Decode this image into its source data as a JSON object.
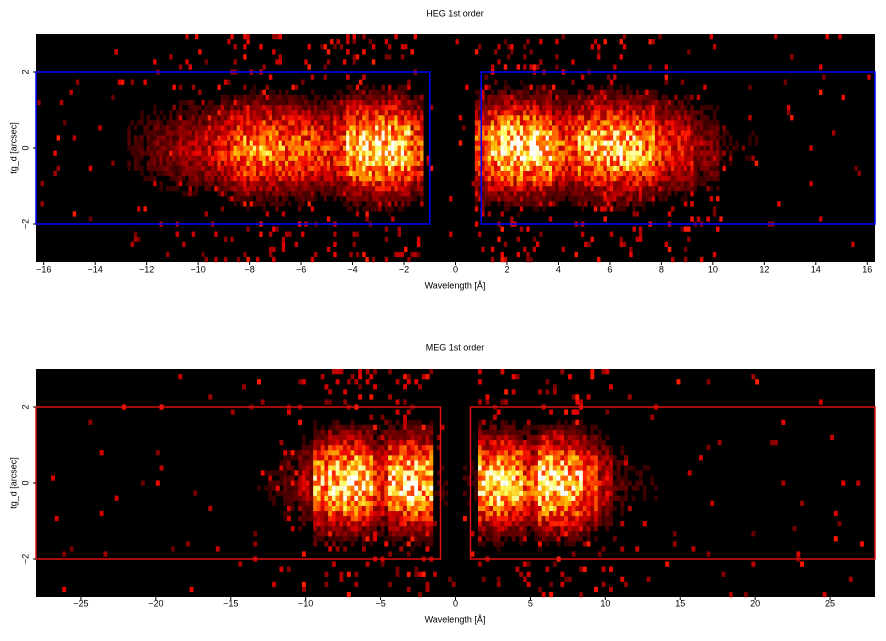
{
  "chart_data": [
    {
      "type": "heatmap",
      "title": "HEG 1st order",
      "xlabel": "Wavelength [Å]",
      "ylabel": "tg_d [arcsec]",
      "xlim": [
        -16.3,
        16.3
      ],
      "ylim": [
        -3,
        3
      ],
      "xticks": [
        {
          "value": -16,
          "label": "−16"
        },
        {
          "value": -14,
          "label": "−14"
        },
        {
          "value": -12,
          "label": "−12"
        },
        {
          "value": -10,
          "label": "−10"
        },
        {
          "value": -8,
          "label": "−8"
        },
        {
          "value": -6,
          "label": "−6"
        },
        {
          "value": -4,
          "label": "−4"
        },
        {
          "value": -2,
          "label": "−2"
        },
        0,
        2,
        4,
        6,
        8,
        10,
        12,
        14,
        16
      ],
      "yticks": [
        {
          "value": -2,
          "label": "−2"
        },
        0,
        2
      ],
      "profile": {
        "x": [
          -16,
          -15.5,
          -15,
          -14.5,
          -14,
          -13.5,
          -13,
          -12.5,
          -12,
          -11.5,
          -11,
          -10.5,
          -10,
          -9.5,
          -9,
          -8.5,
          -8,
          -7.5,
          -7,
          -6.5,
          -6,
          -5.5,
          -5,
          -4.5,
          -4,
          -3.5,
          -3,
          -2.5,
          -2,
          -1.5,
          -1,
          -0.5,
          0,
          0.5,
          1,
          1.5,
          2,
          2.5,
          3,
          3.5,
          4,
          4.5,
          5,
          5.5,
          6,
          6.5,
          7,
          7.5,
          8,
          8.5,
          9,
          9.5,
          10,
          10.5,
          11,
          11.5,
          12,
          12.5,
          13,
          13.5,
          14,
          14.5,
          15,
          15.5,
          16
        ],
        "values": [
          0.02,
          0.02,
          0.02,
          0.02,
          0.02,
          0.03,
          0.05,
          0.12,
          0.15,
          0.2,
          0.22,
          0.28,
          0.32,
          0.35,
          0.45,
          0.6,
          0.7,
          0.72,
          0.68,
          0.65,
          0.6,
          0.55,
          0.5,
          0.55,
          0.9,
          0.95,
          1.0,
          0.98,
          0.9,
          0.6,
          0.03,
          0.02,
          0.02,
          0.02,
          0.6,
          0.85,
          1.0,
          1.0,
          1.0,
          0.95,
          0.6,
          0.55,
          0.8,
          0.85,
          0.9,
          0.9,
          0.85,
          0.75,
          0.5,
          0.45,
          0.4,
          0.25,
          0.22,
          0.1,
          0.08,
          0.08,
          0.06,
          0.04,
          0.03,
          0.03,
          0.03,
          0.02,
          0.02,
          0.02,
          0.02
        ]
      },
      "boxes": [
        {
          "x": [
            -16.3,
            -1
          ],
          "y": [
            -2,
            2
          ]
        },
        {
          "x": [
            1,
            16.3
          ],
          "y": [
            -2,
            2
          ]
        }
      ],
      "box_color": "#0000ff"
    },
    {
      "type": "heatmap",
      "title": "MEG 1st order",
      "xlabel": "Wavelength [Å]",
      "ylabel": "tg_d [arcsec]",
      "xlim": [
        -28,
        28
      ],
      "ylim": [
        -3,
        3
      ],
      "xticks": [
        {
          "value": -25,
          "label": "−25"
        },
        {
          "value": -20,
          "label": "−20"
        },
        {
          "value": -15,
          "label": "−15"
        },
        {
          "value": -10,
          "label": "−10"
        },
        {
          "value": -5,
          "label": "−5"
        },
        0,
        5,
        10,
        15,
        20,
        25
      ],
      "yticks": [
        {
          "value": -2,
          "label": "−2"
        },
        0,
        2
      ],
      "profile": {
        "x": [
          -27,
          -26,
          -25,
          -24,
          -23,
          -22,
          -21,
          -20,
          -19,
          -18,
          -17,
          -16,
          -15,
          -14,
          -13,
          -12,
          -11,
          -10,
          -9,
          -8,
          -7,
          -6,
          -5,
          -4,
          -3,
          -2,
          -1,
          0,
          1,
          2,
          3,
          4,
          5,
          6,
          7,
          8,
          9,
          10,
          11,
          12,
          13,
          14,
          15,
          16,
          17,
          18,
          19,
          20,
          21,
          22,
          23,
          24,
          25,
          26,
          27
        ],
        "values": [
          0.02,
          0.02,
          0.02,
          0.02,
          0.02,
          0.02,
          0.02,
          0.02,
          0.02,
          0.02,
          0.02,
          0.03,
          0.04,
          0.06,
          0.08,
          0.1,
          0.15,
          0.3,
          0.8,
          0.95,
          1.0,
          0.9,
          0.5,
          0.95,
          1.0,
          0.9,
          0.1,
          0.02,
          0.1,
          0.9,
          1.0,
          0.85,
          0.6,
          1.0,
          1.0,
          0.9,
          0.6,
          0.35,
          0.15,
          0.1,
          0.08,
          0.05,
          0.04,
          0.03,
          0.02,
          0.02,
          0.02,
          0.02,
          0.02,
          0.02,
          0.02,
          0.02,
          0.02,
          0.02,
          0.02
        ]
      },
      "boxes": [
        {
          "x": [
            -28,
            -1
          ],
          "y": [
            -2,
            2
          ]
        },
        {
          "x": [
            1,
            28
          ],
          "y": [
            -2,
            2
          ]
        }
      ],
      "box_color": "#dd1111"
    }
  ]
}
